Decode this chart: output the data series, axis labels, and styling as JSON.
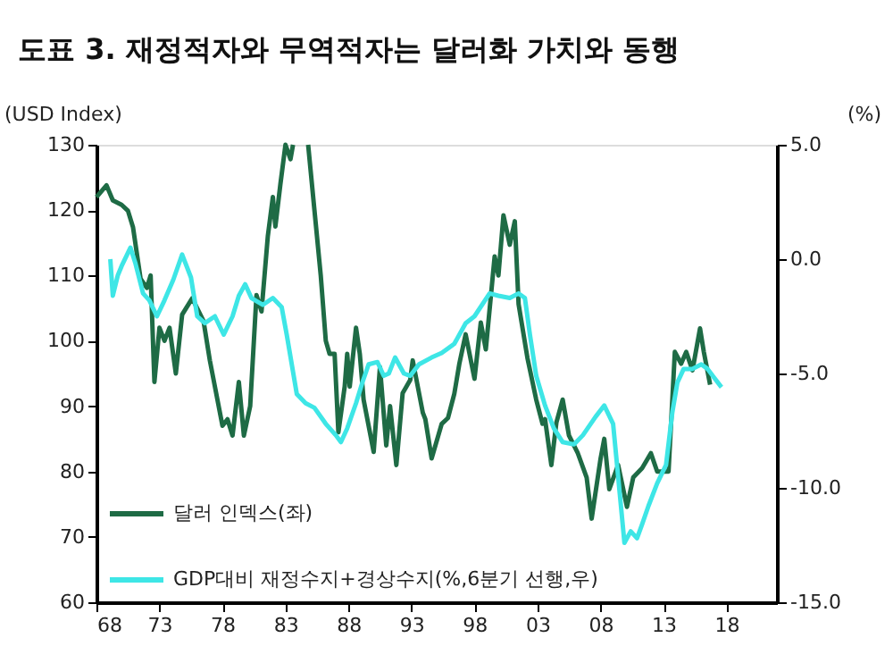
{
  "chart_data": {
    "type": "line",
    "title": "도표 3. 재정적자와 무역적자는 달러화 가치와 동행",
    "ylabel": "(USD Index)",
    "y2label": "(%)",
    "xlim": [
      1968,
      2022
    ],
    "xticks": [
      {
        "value": 1968,
        "label": "68"
      },
      {
        "value": 1973,
        "label": "73"
      },
      {
        "value": 1978,
        "label": "78"
      },
      {
        "value": 1983,
        "label": "83"
      },
      {
        "value": 1988,
        "label": "88"
      },
      {
        "value": 1993,
        "label": "93"
      },
      {
        "value": 1998,
        "label": "98"
      },
      {
        "value": 2003,
        "label": "03"
      },
      {
        "value": 2008,
        "label": "08"
      },
      {
        "value": 2013,
        "label": "13"
      },
      {
        "value": 2018,
        "label": "18"
      }
    ],
    "ylim": [
      60,
      130
    ],
    "yticks": [
      60,
      70,
      80,
      90,
      100,
      110,
      120,
      130
    ],
    "y2lim": [
      -15,
      5
    ],
    "y2ticks": [
      {
        "value": -15,
        "label": "-15.0"
      },
      {
        "value": -10,
        "label": "-10.0"
      },
      {
        "value": -5,
        "label": "-5.0"
      },
      {
        "value": 0,
        "label": "0.0"
      },
      {
        "value": 5,
        "label": "5.0"
      }
    ],
    "grid": false,
    "legend": "bottom left",
    "marker": "none",
    "line_style": "solid",
    "series": [
      {
        "name": "달러 인덱스(좌)",
        "color": "#1e6b45",
        "axis": "y",
        "x": [
          1968.0,
          1968.8,
          1969.3,
          1970.0,
          1970.5,
          1970.9,
          1971.5,
          1972.0,
          1972.3,
          1972.6,
          1973.0,
          1973.4,
          1973.8,
          1974.3,
          1974.8,
          1975.6,
          1976.5,
          1977.0,
          1977.4,
          1978.0,
          1978.4,
          1978.8,
          1979.3,
          1979.7,
          1980.2,
          1980.7,
          1981.1,
          1981.6,
          1982.0,
          1982.2,
          1982.6,
          1983.0,
          1983.4,
          1983.6,
          1984.2,
          1984.8,
          1985.3,
          1985.8,
          1986.2,
          1986.5,
          1986.9,
          1987.2,
          1987.7,
          1987.9,
          1988.1,
          1988.6,
          1988.9,
          1989.2,
          1990.0,
          1990.5,
          1991.0,
          1991.3,
          1991.8,
          1992.3,
          1992.9,
          1993.1,
          1993.9,
          1994.1,
          1994.6,
          1995.4,
          1995.9,
          1996.4,
          1996.8,
          1997.3,
          1998.0,
          1998.5,
          1998.9,
          1999.6,
          1999.9,
          2000.3,
          2000.8,
          2001.2,
          2001.5,
          2002.2,
          2002.9,
          2003.4,
          2003.6,
          2004.1,
          2004.5,
          2005.0,
          2005.5,
          2006.2,
          2006.9,
          2007.3,
          2008.0,
          2008.3,
          2008.7,
          2009.4,
          2010.1,
          2010.6,
          2011.3,
          2012.0,
          2012.5,
          2013.0,
          2013.4,
          2013.9,
          2014.4,
          2014.8,
          2015.3,
          2015.9,
          2016.2,
          2016.7
        ],
        "values": [
          122,
          123.8,
          121.5,
          120.8,
          119.9,
          117.4,
          109.5,
          108.1,
          110,
          93.7,
          102,
          100,
          102,
          95,
          104,
          106.5,
          103,
          97,
          93,
          87,
          88,
          85.5,
          93.7,
          85.5,
          90,
          107,
          104.5,
          116,
          122,
          117.5,
          124,
          130,
          127.8,
          130,
          null,
          130,
          120,
          110,
          100,
          98,
          98,
          86,
          93,
          98,
          93,
          102,
          98,
          91,
          83,
          96,
          84,
          90,
          81,
          92,
          94,
          97,
          89,
          88,
          82,
          87.3,
          88.2,
          91.9,
          96.5,
          101,
          94.2,
          102.8,
          98.7,
          112.9,
          110,
          119.2,
          114.7,
          118.3,
          105.6,
          97.4,
          91,
          87.3,
          88,
          81,
          87.5,
          91,
          85.5,
          82.8,
          79.1,
          72.8,
          81.9,
          85,
          77.3,
          81,
          74.6,
          79.1,
          80.5,
          82.8,
          80,
          80,
          80,
          98.3,
          96.5,
          98.3,
          95.5,
          101.9,
          98.3,
          93.3
        ]
      },
      {
        "name": "GDP대비 재정수지+경상수지(%,6분기 선행,우)",
        "color": "#3ee6e6",
        "axis": "y2",
        "x": [
          1969.1,
          1969.3,
          1969.7,
          1970.0,
          1970.7,
          1971.1,
          1971.7,
          1972.2,
          1972.8,
          1973.4,
          1974.1,
          1974.8,
          1975.5,
          1976.0,
          1976.6,
          1977.4,
          1978.1,
          1978.8,
          1979.3,
          1979.8,
          1980.3,
          1981.2,
          1982.0,
          1982.7,
          1983.1,
          1983.9,
          1984.6,
          1985.3,
          1986.2,
          1987.0,
          1987.4,
          1987.9,
          1988.6,
          1989.1,
          1989.6,
          1990.3,
          1990.8,
          1991.2,
          1991.7,
          1992.4,
          1992.9,
          1993.6,
          1994.6,
          1995.4,
          1996.4,
          1997.3,
          1998.0,
          1999.2,
          1999.9,
          2000.8,
          2001.5,
          2002.0,
          2002.4,
          2002.9,
          2003.6,
          2004.3,
          2005.0,
          2005.9,
          2006.6,
          2007.6,
          2008.3,
          2009.0,
          2009.4,
          2009.9,
          2010.4,
          2010.9,
          2011.3,
          2011.8,
          2012.5,
          2013.2,
          2013.7,
          2014.1,
          2014.6,
          2015.3,
          2016.0,
          2016.5,
          2016.9,
          2017.6
        ],
        "values": [
          0.0,
          -1.6,
          -0.7,
          -0.3,
          0.5,
          -0.2,
          -1.5,
          -1.8,
          -2.5,
          -1.8,
          -0.9,
          0.2,
          -0.8,
          -2.5,
          -2.8,
          -2.5,
          -3.3,
          -2.5,
          -1.6,
          -1.1,
          -1.7,
          -2.0,
          -1.7,
          -2.1,
          -3.3,
          -5.9,
          -6.3,
          -6.5,
          -7.2,
          -7.7,
          -8.0,
          -7.4,
          -6.3,
          -5.4,
          -4.6,
          -4.5,
          -5.1,
          -5.0,
          -4.3,
          -5.0,
          -5.1,
          -4.6,
          -4.3,
          -4.1,
          -3.7,
          -2.8,
          -2.5,
          -1.5,
          -1.6,
          -1.7,
          -1.5,
          -1.7,
          -3.3,
          -5.1,
          -6.4,
          -7.4,
          -8.0,
          -8.1,
          -7.7,
          -6.9,
          -6.4,
          -7.2,
          -9.5,
          -12.4,
          -11.9,
          -12.2,
          -11.6,
          -10.8,
          -9.8,
          -9.0,
          -6.7,
          -5.4,
          -4.8,
          -4.8,
          -4.6,
          -4.8,
          -5.1,
          -5.6
        ]
      }
    ]
  }
}
